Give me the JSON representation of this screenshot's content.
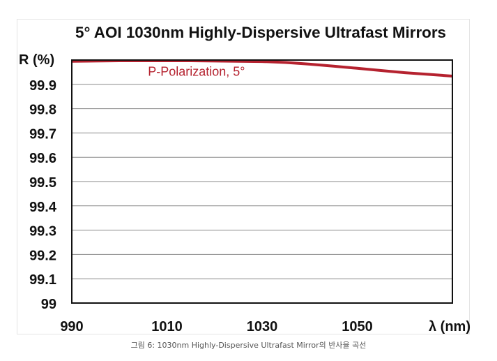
{
  "chart_data": {
    "type": "line",
    "title": "5° AOI 1030nm Highly-Dispersive Ultrafast Mirrors",
    "ylabel": "R (%)",
    "xlabel": "λ (nm)",
    "xlim": [
      990,
      1070
    ],
    "ylim": [
      99,
      100
    ],
    "x_ticks": [
      990,
      1010,
      1030,
      1050
    ],
    "y_ticks": [
      "99",
      "99.1",
      "99.2",
      "99.3",
      "99.4",
      "99.5",
      "99.6",
      "99.7",
      "99.8",
      "99.9"
    ],
    "grid": true,
    "series": [
      {
        "name": "P-Polarization, 5°",
        "color": "#b5222f",
        "x": [
          990,
          995,
          1000,
          1005,
          1010,
          1015,
          1020,
          1025,
          1030,
          1035,
          1040,
          1045,
          1050,
          1055,
          1060,
          1065,
          1070
        ],
        "y": [
          99.995,
          99.996,
          99.997,
          99.997,
          99.997,
          99.997,
          99.996,
          99.995,
          99.994,
          99.99,
          99.983,
          99.975,
          99.966,
          99.957,
          99.948,
          99.941,
          99.934
        ]
      }
    ]
  },
  "caption": "그림 6: 1030nm Highly-Dispersive Ultrafast Mirror의 반사율 곡선"
}
